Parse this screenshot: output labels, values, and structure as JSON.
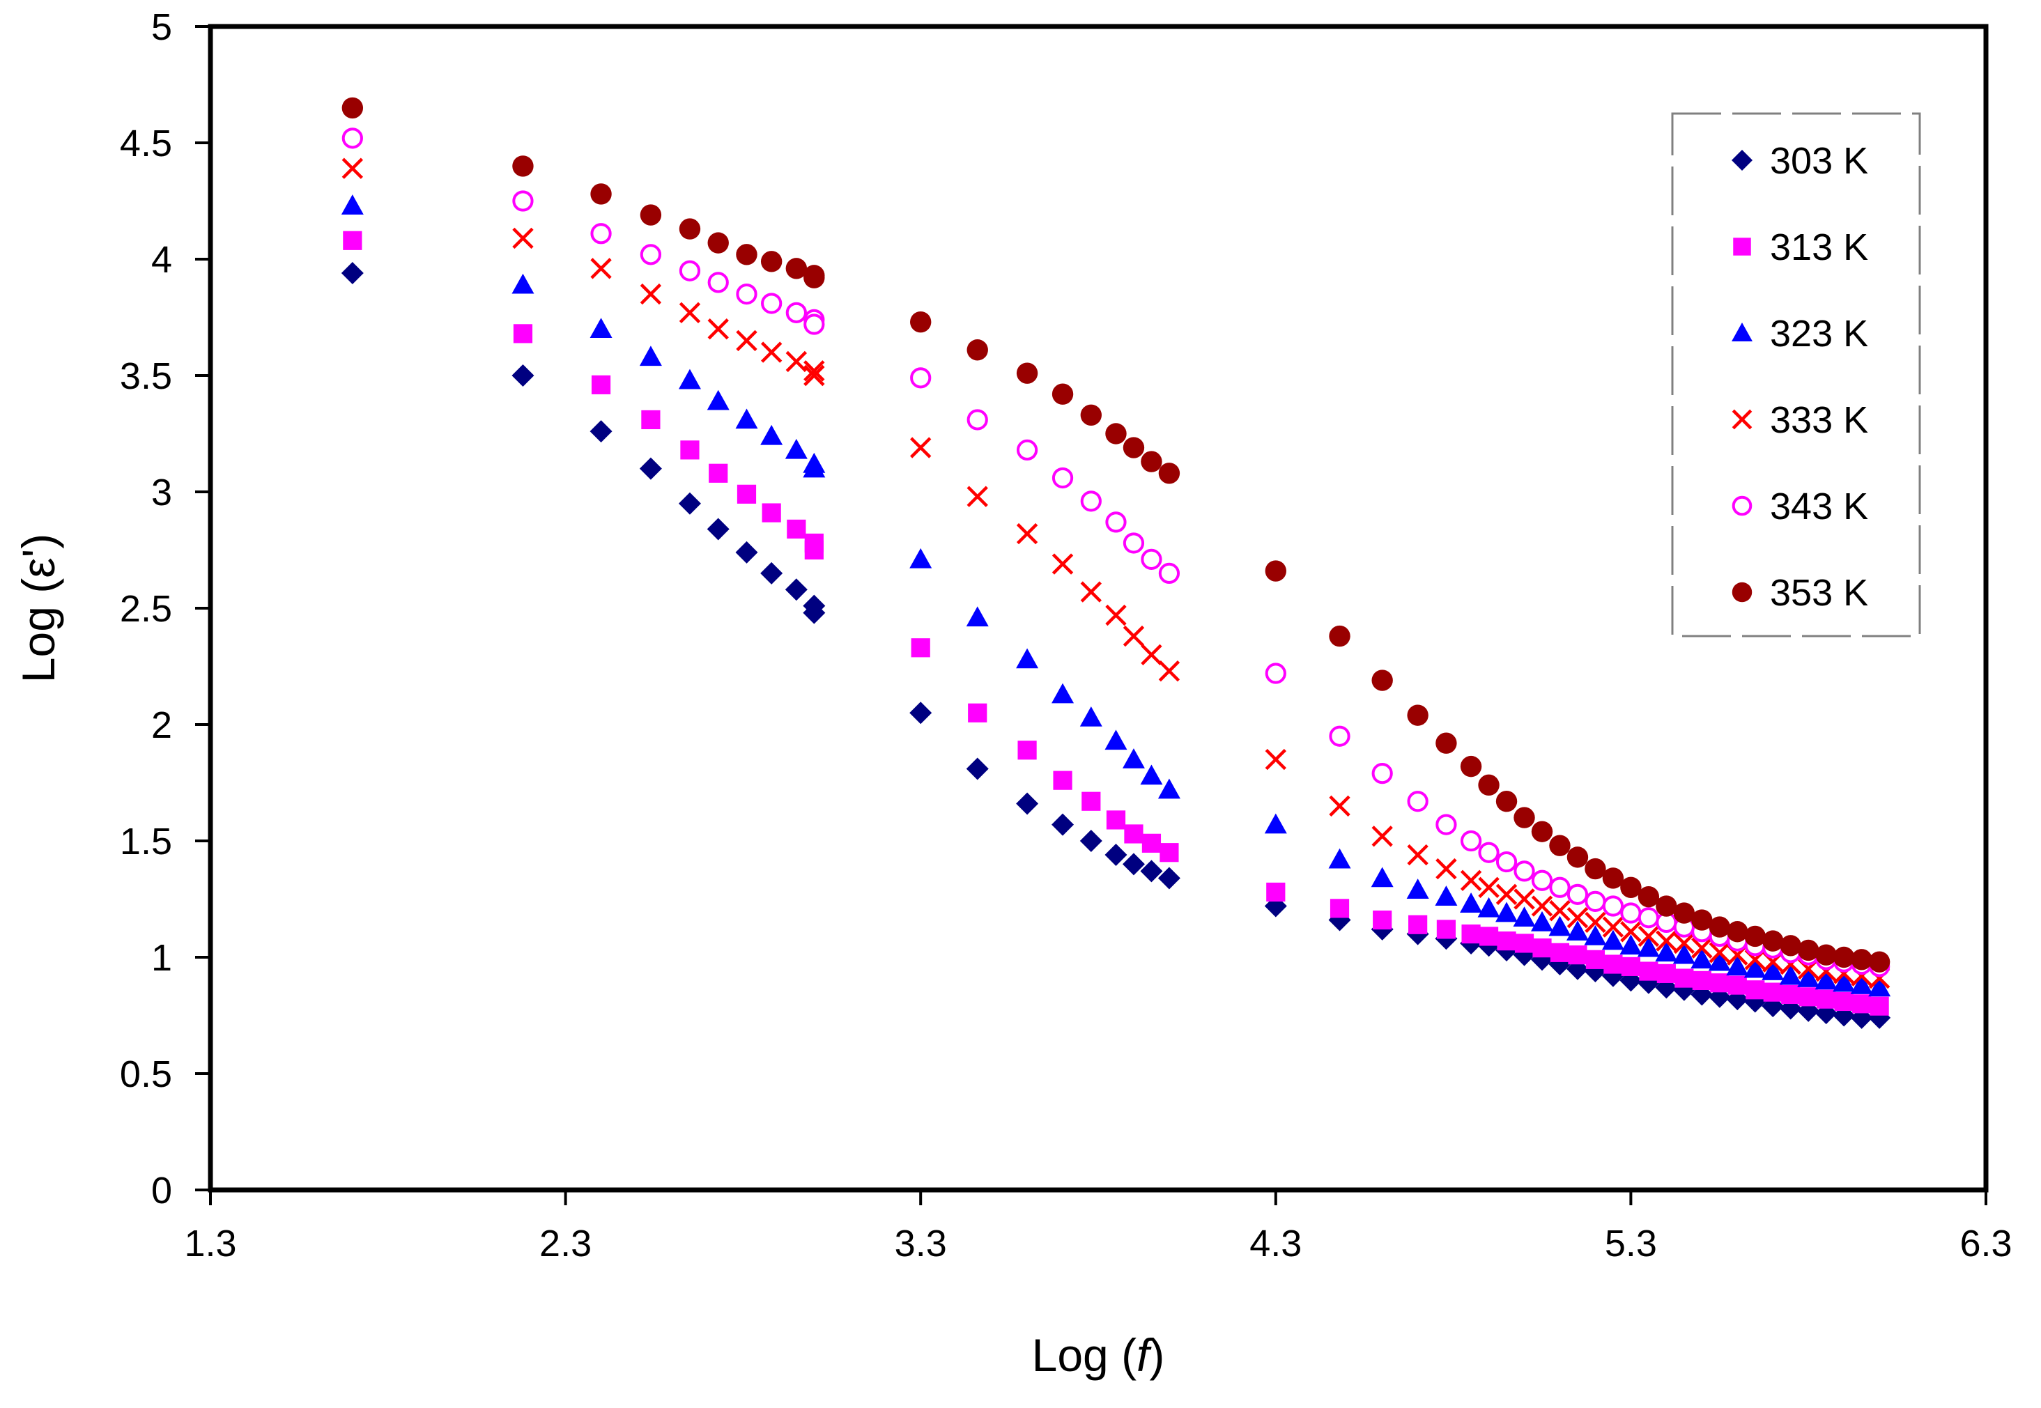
{
  "chart_data": {
    "type": "scatter",
    "title": "",
    "xlabel_prefix": "Log (",
    "xlabel_var": "f",
    "xlabel_suffix": ")",
    "ylabel": "Log (ε')",
    "xlim": [
      1.3,
      6.3
    ],
    "ylim": [
      0,
      5
    ],
    "xticks": [
      "1.3",
      "2.3",
      "3.3",
      "4.3",
      "5.3",
      "6.3"
    ],
    "yticks": [
      "0",
      "0.5",
      "1",
      "1.5",
      "2",
      "2.5",
      "3",
      "3.5",
      "4",
      "4.5",
      "5"
    ],
    "legend_position": "top-right",
    "x": [
      1.7,
      2.18,
      2.4,
      2.54,
      2.65,
      2.73,
      2.81,
      2.88,
      2.95,
      3.0,
      3.0,
      3.3,
      3.46,
      3.6,
      3.7,
      3.78,
      3.85,
      3.9,
      3.95,
      4.0,
      4.3,
      4.48,
      4.6,
      4.7,
      4.78,
      4.85,
      4.9,
      4.95,
      5.0,
      5.05,
      5.1,
      5.15,
      5.2,
      5.25,
      5.3,
      5.35,
      5.4,
      5.45,
      5.5,
      5.55,
      5.6,
      5.65,
      5.7,
      5.75,
      5.8,
      5.85,
      5.9,
      5.95,
      6.0
    ],
    "series": [
      {
        "name": "303 K",
        "marker": "diamond",
        "color": "#000080",
        "values": [
          3.94,
          3.5,
          3.26,
          3.1,
          2.95,
          2.84,
          2.74,
          2.65,
          2.58,
          2.51,
          2.48,
          2.05,
          1.81,
          1.66,
          1.57,
          1.5,
          1.44,
          1.4,
          1.37,
          1.34,
          1.22,
          1.16,
          1.12,
          1.1,
          1.08,
          1.06,
          1.05,
          1.03,
          1.01,
          0.99,
          0.97,
          0.95,
          0.94,
          0.92,
          0.9,
          0.89,
          0.87,
          0.86,
          0.84,
          0.83,
          0.82,
          0.81,
          0.79,
          0.78,
          0.77,
          0.76,
          0.75,
          0.74,
          0.74
        ]
      },
      {
        "name": "313 K",
        "marker": "square",
        "color": "#ff00ff",
        "values": [
          4.08,
          3.68,
          3.46,
          3.31,
          3.18,
          3.08,
          2.99,
          2.91,
          2.84,
          2.78,
          2.75,
          2.33,
          2.05,
          1.89,
          1.76,
          1.67,
          1.59,
          1.53,
          1.49,
          1.45,
          1.28,
          1.21,
          1.16,
          1.14,
          1.12,
          1.1,
          1.09,
          1.07,
          1.06,
          1.04,
          1.02,
          1.01,
          0.99,
          0.97,
          0.96,
          0.94,
          0.93,
          0.91,
          0.9,
          0.89,
          0.88,
          0.86,
          0.85,
          0.84,
          0.83,
          0.82,
          0.81,
          0.8,
          0.79
        ]
      },
      {
        "name": "323 K",
        "marker": "triangle",
        "color": "#0000ff",
        "values": [
          4.23,
          3.89,
          3.7,
          3.58,
          3.48,
          3.39,
          3.31,
          3.24,
          3.18,
          3.12,
          3.1,
          2.71,
          2.46,
          2.28,
          2.13,
          2.03,
          1.93,
          1.85,
          1.78,
          1.72,
          1.57,
          1.42,
          1.34,
          1.29,
          1.26,
          1.23,
          1.21,
          1.19,
          1.17,
          1.15,
          1.13,
          1.11,
          1.09,
          1.07,
          1.05,
          1.04,
          1.02,
          1.01,
          0.99,
          0.98,
          0.96,
          0.95,
          0.94,
          0.92,
          0.91,
          0.9,
          0.89,
          0.88,
          0.87
        ]
      },
      {
        "name": "333 K",
        "marker": "x",
        "color": "#ff0000",
        "values": [
          4.39,
          4.09,
          3.96,
          3.85,
          3.77,
          3.7,
          3.65,
          3.6,
          3.56,
          3.52,
          3.5,
          3.19,
          2.98,
          2.82,
          2.69,
          2.57,
          2.47,
          2.38,
          2.3,
          2.23,
          1.85,
          1.65,
          1.52,
          1.44,
          1.38,
          1.33,
          1.3,
          1.27,
          1.25,
          1.22,
          1.2,
          1.17,
          1.15,
          1.13,
          1.11,
          1.09,
          1.07,
          1.06,
          1.04,
          1.02,
          1.01,
          0.99,
          0.98,
          0.97,
          0.95,
          0.94,
          0.93,
          0.92,
          0.91
        ]
      },
      {
        "name": "343 K",
        "marker": "circle-open",
        "color": "#ff00ff",
        "values": [
          4.52,
          4.25,
          4.11,
          4.02,
          3.95,
          3.9,
          3.85,
          3.81,
          3.77,
          3.74,
          3.72,
          3.49,
          3.31,
          3.18,
          3.06,
          2.96,
          2.87,
          2.78,
          2.71,
          2.65,
          2.22,
          1.95,
          1.79,
          1.67,
          1.57,
          1.5,
          1.45,
          1.41,
          1.37,
          1.33,
          1.3,
          1.27,
          1.24,
          1.22,
          1.19,
          1.17,
          1.15,
          1.13,
          1.11,
          1.09,
          1.07,
          1.05,
          1.04,
          1.02,
          1.01,
          0.99,
          0.98,
          0.97,
          0.96
        ]
      },
      {
        "name": "353 K",
        "marker": "circle",
        "color": "#990000",
        "values": [
          4.65,
          4.4,
          4.28,
          4.19,
          4.13,
          4.07,
          4.02,
          3.99,
          3.96,
          3.93,
          3.92,
          3.73,
          3.61,
          3.51,
          3.42,
          3.33,
          3.25,
          3.19,
          3.13,
          3.08,
          2.66,
          2.38,
          2.19,
          2.04,
          1.92,
          1.82,
          1.74,
          1.67,
          1.6,
          1.54,
          1.48,
          1.43,
          1.38,
          1.34,
          1.3,
          1.26,
          1.22,
          1.19,
          1.16,
          1.13,
          1.11,
          1.09,
          1.07,
          1.05,
          1.03,
          1.01,
          1.0,
          0.99,
          0.98
        ]
      }
    ]
  }
}
